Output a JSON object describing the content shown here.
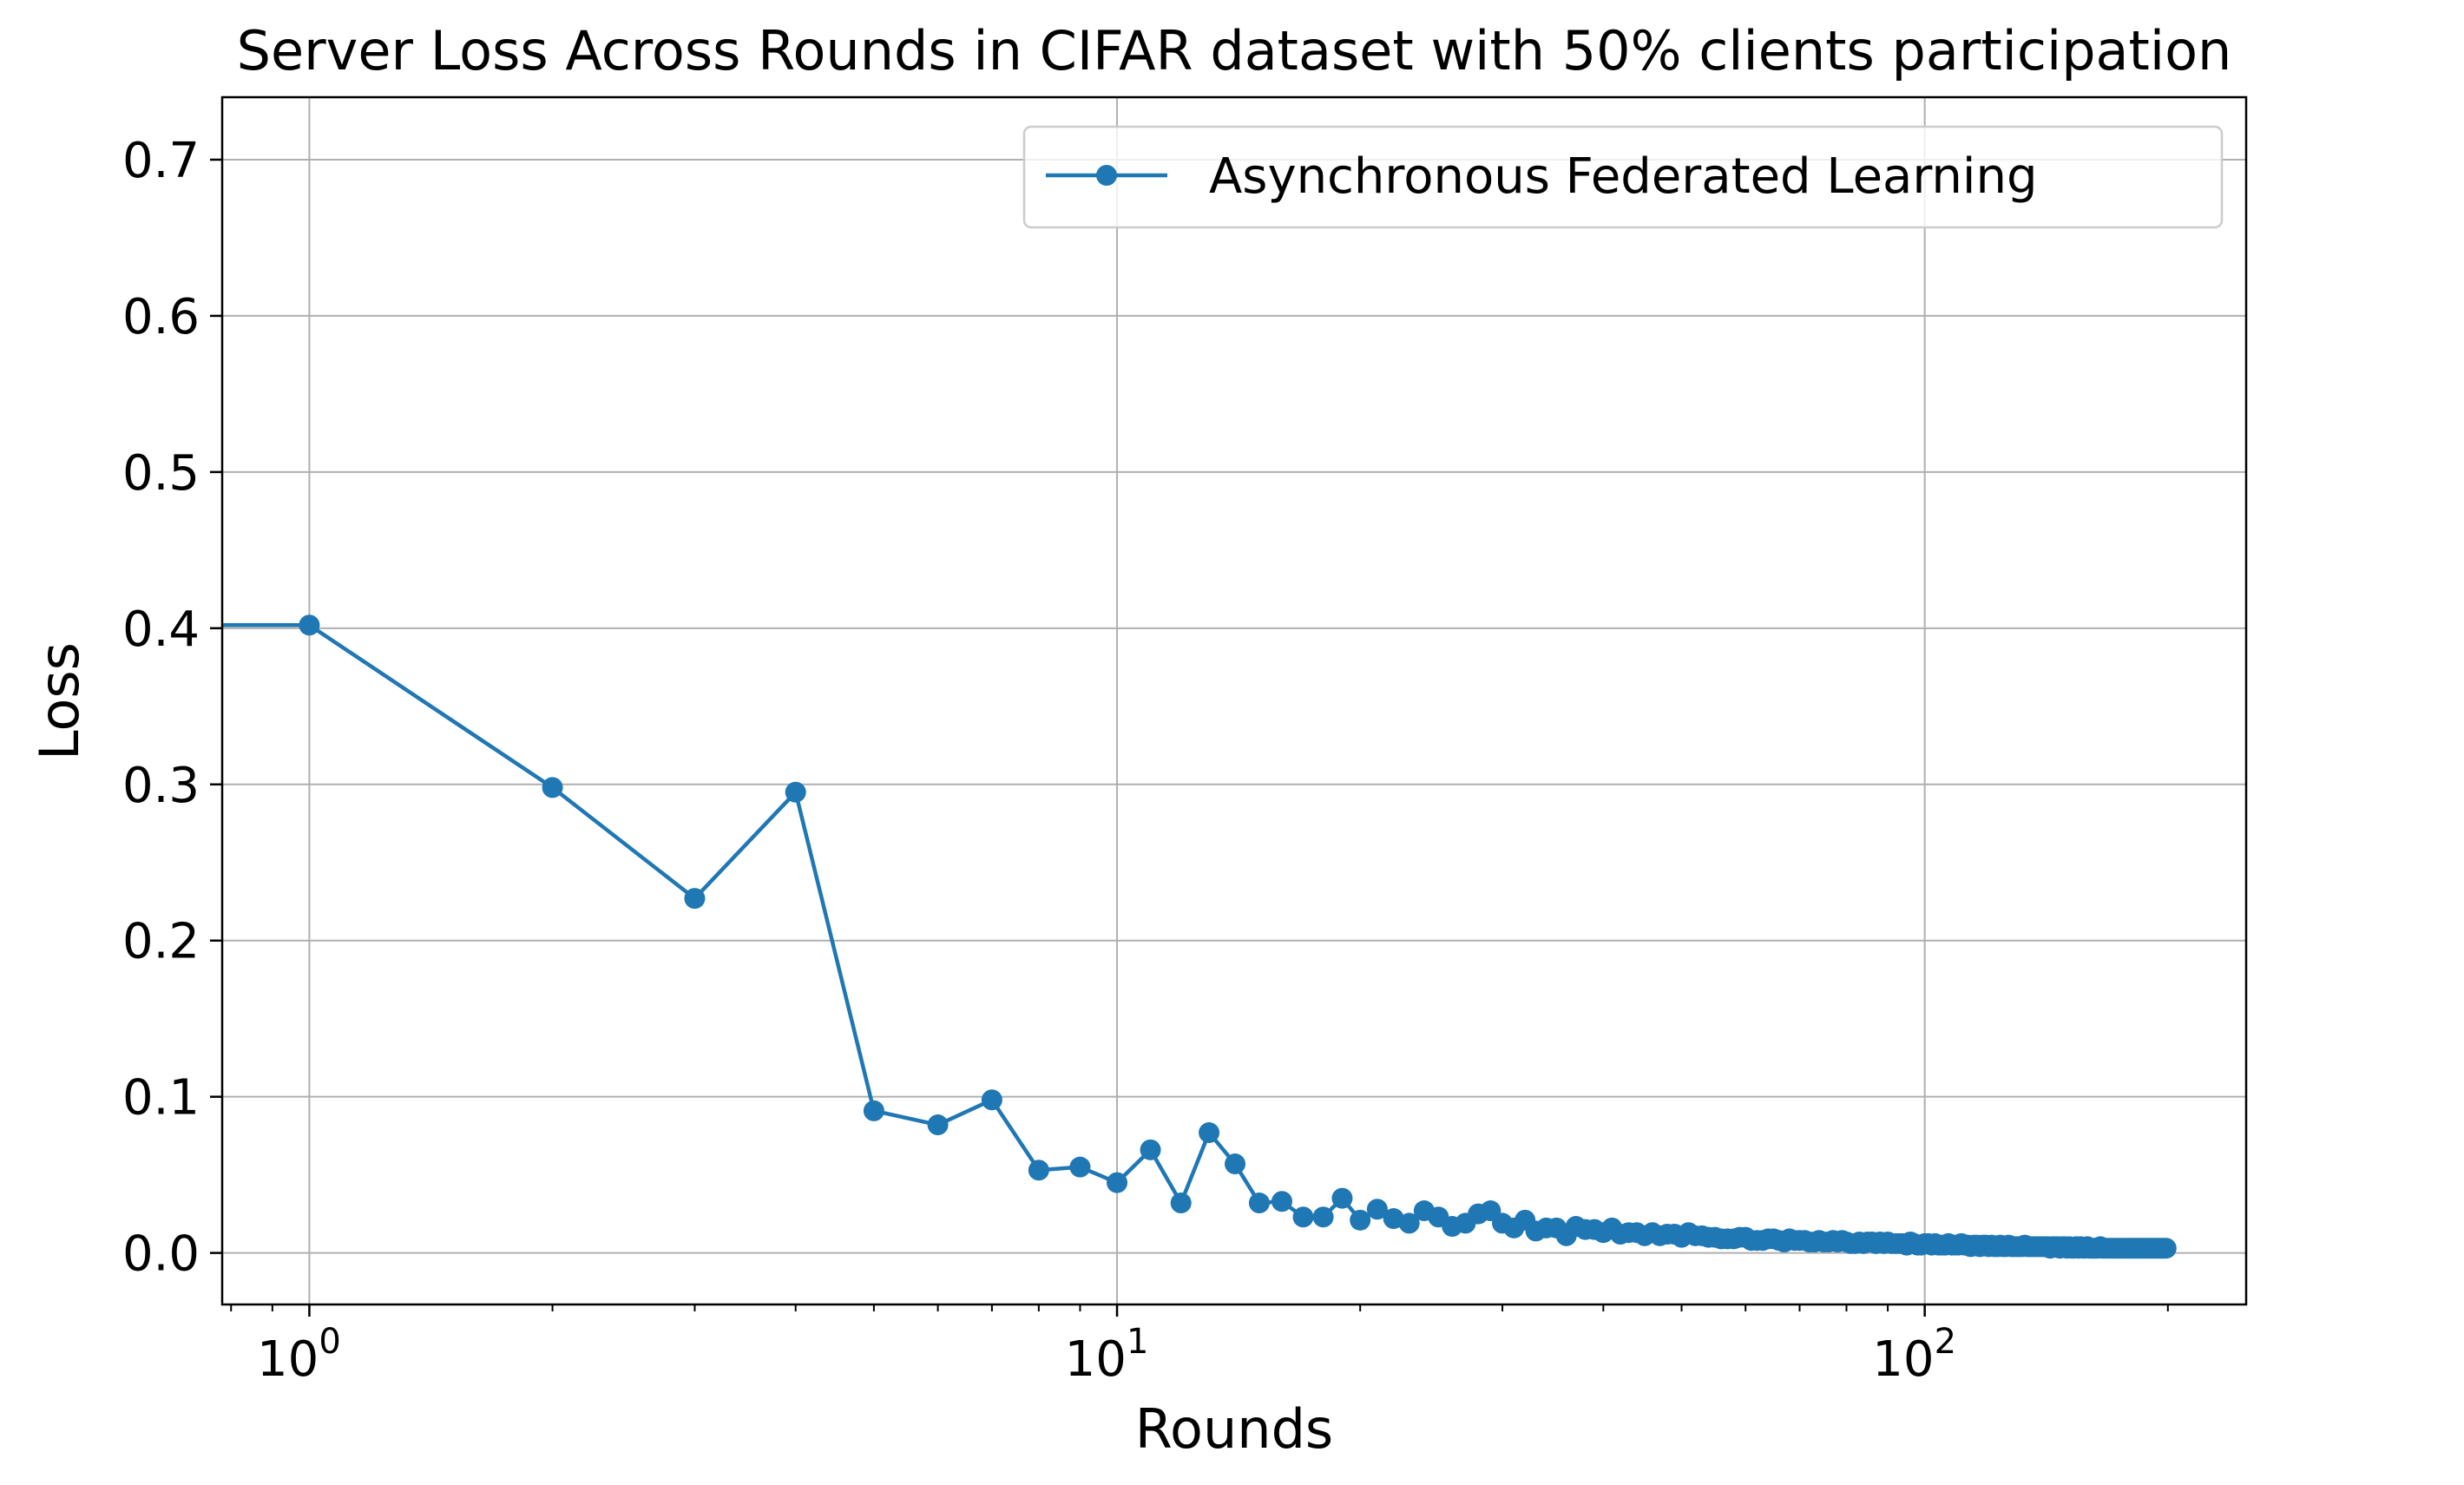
{
  "chart_data": {
    "type": "line",
    "title": "Server Loss Across Rounds in CIFAR dataset with 50% clients participation",
    "xlabel": "Rounds",
    "ylabel": "Loss",
    "x_scale": "log",
    "xlim": [
      0.78,
      250
    ],
    "ylim": [
      -0.033,
      0.74
    ],
    "x_ticks": [
      {
        "value": 1,
        "base": "10",
        "exp": "0"
      },
      {
        "value": 10,
        "base": "10",
        "exp": "1"
      },
      {
        "value": 100,
        "base": "10",
        "exp": "2"
      }
    ],
    "y_ticks": [
      {
        "value": 0.0,
        "label": "0.0"
      },
      {
        "value": 0.1,
        "label": "0.1"
      },
      {
        "value": 0.2,
        "label": "0.2"
      },
      {
        "value": 0.3,
        "label": "0.3"
      },
      {
        "value": 0.4,
        "label": "0.4"
      },
      {
        "value": 0.5,
        "label": "0.5"
      },
      {
        "value": 0.6,
        "label": "0.6"
      },
      {
        "value": 0.7,
        "label": "0.7"
      }
    ],
    "grid": true,
    "legend_position": "upper right",
    "series": [
      {
        "name": "Asynchronous Federated Learning",
        "color": "#1f77b4",
        "marker": "circle",
        "x": [
          0,
          1,
          2,
          3,
          4,
          5,
          6,
          7,
          8,
          9,
          10,
          11,
          12,
          13,
          14,
          15,
          16,
          17,
          18,
          19,
          20,
          21,
          22,
          23,
          24,
          25,
          26,
          27,
          28,
          29,
          30,
          31,
          32,
          33,
          34,
          35,
          36,
          37,
          38,
          39,
          40,
          41,
          42,
          43,
          44,
          45,
          46,
          47,
          48,
          49,
          50,
          51,
          52,
          53,
          54,
          55,
          56,
          57,
          58,
          59,
          60,
          61,
          62,
          63,
          64,
          65,
          66,
          67,
          68,
          69,
          70,
          71,
          72,
          73,
          74,
          75,
          76,
          77,
          78,
          79,
          80,
          81,
          82,
          83,
          84,
          85,
          86,
          87,
          88,
          89,
          90,
          91,
          92,
          93,
          94,
          95,
          96,
          97,
          98,
          99,
          100,
          101,
          102,
          103,
          104,
          105,
          106,
          107,
          108,
          109,
          110,
          111,
          112,
          113,
          114,
          115,
          116,
          117,
          118,
          119,
          120,
          121,
          122,
          123,
          124,
          125,
          126,
          127,
          128,
          129,
          130,
          131,
          132,
          133,
          134,
          135,
          136,
          137,
          138,
          139,
          140,
          141,
          142,
          143,
          144,
          145,
          146,
          147,
          148,
          149,
          150,
          151,
          152,
          153,
          154,
          155,
          156,
          157,
          158,
          159,
          160,
          161,
          162,
          163,
          164,
          165,
          166,
          167,
          168,
          169,
          170,
          171,
          172,
          173,
          174,
          175,
          176,
          177,
          178,
          179,
          180,
          181,
          182,
          183,
          184,
          185,
          186,
          187,
          188,
          189,
          190,
          191,
          192,
          193,
          194,
          195,
          196,
          197,
          198,
          199
        ],
        "y": [
          0.402,
          0.402,
          0.298,
          0.227,
          0.295,
          0.091,
          0.082,
          0.098,
          0.053,
          0.055,
          0.045,
          0.066,
          0.032,
          0.077,
          0.057,
          0.032,
          0.033,
          0.023,
          0.023,
          0.035,
          0.021,
          0.028,
          0.022,
          0.019,
          0.027,
          0.023,
          0.017,
          0.019,
          0.025,
          0.027,
          0.019,
          0.016,
          0.021,
          0.014,
          0.016,
          0.016,
          0.011,
          0.017,
          0.015,
          0.015,
          0.013,
          0.016,
          0.012,
          0.013,
          0.013,
          0.011,
          0.013,
          0.011,
          0.012,
          0.012,
          0.01,
          0.013,
          0.011,
          0.011,
          0.01,
          0.01,
          0.009,
          0.009,
          0.009,
          0.01,
          0.01,
          0.008,
          0.008,
          0.008,
          0.009,
          0.009,
          0.008,
          0.007,
          0.009,
          0.008,
          0.008,
          0.008,
          0.007,
          0.007,
          0.008,
          0.007,
          0.007,
          0.008,
          0.007,
          0.008,
          0.007,
          0.006,
          0.006,
          0.007,
          0.006,
          0.007,
          0.007,
          0.006,
          0.007,
          0.006,
          0.007,
          0.006,
          0.006,
          0.006,
          0.006,
          0.005,
          0.007,
          0.006,
          0.005,
          0.005,
          0.006,
          0.006,
          0.005,
          0.006,
          0.005,
          0.005,
          0.005,
          0.006,
          0.005,
          0.005,
          0.005,
          0.006,
          0.005,
          0.005,
          0.004,
          0.005,
          0.005,
          0.004,
          0.005,
          0.005,
          0.004,
          0.005,
          0.004,
          0.004,
          0.005,
          0.004,
          0.004,
          0.005,
          0.004,
          0.004,
          0.004,
          0.004,
          0.004,
          0.005,
          0.004,
          0.004,
          0.004,
          0.004,
          0.004,
          0.004,
          0.004,
          0.004,
          0.004,
          0.003,
          0.004,
          0.004,
          0.004,
          0.003,
          0.004,
          0.004,
          0.003,
          0.004,
          0.003,
          0.003,
          0.004,
          0.003,
          0.004,
          0.003,
          0.003,
          0.004,
          0.003,
          0.003,
          0.003,
          0.003,
          0.003,
          0.004,
          0.003,
          0.003,
          0.003,
          0.003,
          0.003,
          0.003,
          0.003,
          0.003,
          0.003,
          0.003,
          0.003,
          0.003,
          0.003,
          0.003,
          0.003,
          0.003,
          0.003,
          0.003,
          0.003,
          0.003,
          0.003,
          0.003,
          0.003,
          0.003,
          0.003,
          0.003,
          0.003,
          0.003,
          0.003,
          0.003,
          0.003,
          0.003,
          0.003,
          0.003
        ]
      }
    ]
  }
}
